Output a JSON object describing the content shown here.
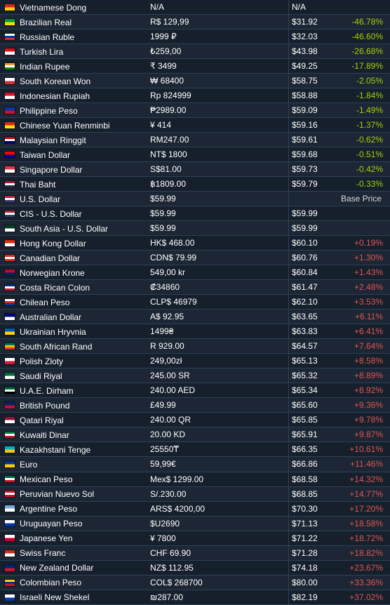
{
  "colors": {
    "background": "#1b2838",
    "cheaper": "#a4d007",
    "pricier": "#e0554f"
  },
  "rows": [
    {
      "name": "Vietnamese Dong",
      "flag": [
        "#da251d",
        "#ffcd00"
      ],
      "local": "N/A",
      "usd": "N/A",
      "diff": "",
      "kind": "none"
    },
    {
      "name": "Brazilian Real",
      "flag": [
        "#009c3b",
        "#ffdf00"
      ],
      "local": "R$ 129,99",
      "usd": "$31.92",
      "diff": "-46.78%",
      "kind": "neg"
    },
    {
      "name": "Russian Ruble",
      "flag": [
        "#ffffff",
        "#0039a6",
        "#d52b1e"
      ],
      "local": "1999 ₽",
      "usd": "$32.03",
      "diff": "-46.60%",
      "kind": "neg"
    },
    {
      "name": "Turkish Lira",
      "flag": [
        "#e30a17",
        "#ffffff"
      ],
      "local": "₺259,00",
      "usd": "$43.98",
      "diff": "-26.68%",
      "kind": "neg"
    },
    {
      "name": "Indian Rupee",
      "flag": [
        "#ff9933",
        "#ffffff",
        "#138808"
      ],
      "local": "₹ 3499",
      "usd": "$49.25",
      "diff": "-17.89%",
      "kind": "neg"
    },
    {
      "name": "South Korean Won",
      "flag": [
        "#ffffff",
        "#cd2e3a"
      ],
      "local": "₩ 68400",
      "usd": "$58.75",
      "diff": "-2.05%",
      "kind": "neg"
    },
    {
      "name": "Indonesian Rupiah",
      "flag": [
        "#ce1126",
        "#ffffff"
      ],
      "local": "Rp 824999",
      "usd": "$58.88",
      "diff": "-1.84%",
      "kind": "neg"
    },
    {
      "name": "Philippine Peso",
      "flag": [
        "#0038a8",
        "#ce1126"
      ],
      "local": "₱2989.00",
      "usd": "$59.09",
      "diff": "-1.49%",
      "kind": "neg"
    },
    {
      "name": "Chinese Yuan Renminbi",
      "flag": [
        "#de2910",
        "#ffde00"
      ],
      "local": "¥ 414",
      "usd": "$59.16",
      "diff": "-1.37%",
      "kind": "neg"
    },
    {
      "name": "Malaysian Ringgit",
      "flag": [
        "#cc0001",
        "#ffffff",
        "#010066"
      ],
      "local": "RM247.00",
      "usd": "$59.61",
      "diff": "-0.62%",
      "kind": "neg"
    },
    {
      "name": "Taiwan Dollar",
      "flag": [
        "#fe0000",
        "#000095"
      ],
      "local": "NT$ 1800",
      "usd": "$59.68",
      "diff": "-0.51%",
      "kind": "neg"
    },
    {
      "name": "Singapore Dollar",
      "flag": [
        "#ef3340",
        "#ffffff"
      ],
      "local": "S$81.00",
      "usd": "$59.73",
      "diff": "-0.42%",
      "kind": "neg"
    },
    {
      "name": "Thai Baht",
      "flag": [
        "#a51931",
        "#f4f5f8",
        "#2d2a4a"
      ],
      "local": "฿1809.00",
      "usd": "$59.79",
      "diff": "-0.33%",
      "kind": "neg"
    },
    {
      "name": "U.S. Dollar",
      "flag": [
        "#b22234",
        "#ffffff",
        "#3c3b6e"
      ],
      "local": "$59.99",
      "usd": "",
      "diff": "Base Price",
      "kind": "base"
    },
    {
      "name": "CIS - U.S. Dollar",
      "flag": [
        "#b22234",
        "#ffffff",
        "#3c3b6e"
      ],
      "local": "$59.99",
      "usd": "$59.99",
      "diff": "",
      "kind": "none"
    },
    {
      "name": "South Asia - U.S. Dollar",
      "flag": [
        "#01411c",
        "#ffffff"
      ],
      "local": "$59.99",
      "usd": "$59.99",
      "diff": "",
      "kind": "none"
    },
    {
      "name": "Hong Kong Dollar",
      "flag": [
        "#de2910",
        "#ffffff"
      ],
      "local": "HK$ 468.00",
      "usd": "$60.10",
      "diff": "+0.19%",
      "kind": "pos"
    },
    {
      "name": "Canadian Dollar",
      "flag": [
        "#d52b1e",
        "#ffffff",
        "#d52b1e"
      ],
      "local": "CDN$ 79.99",
      "usd": "$60.76",
      "diff": "+1.30%",
      "kind": "pos"
    },
    {
      "name": "Norwegian Krone",
      "flag": [
        "#ba0c2f",
        "#00205b"
      ],
      "local": "549,00 kr",
      "usd": "$60.84",
      "diff": "+1.43%",
      "kind": "pos"
    },
    {
      "name": "Costa Rican Colon",
      "flag": [
        "#002b7f",
        "#ffffff",
        "#ce1126"
      ],
      "local": "₡34860",
      "usd": "$61.47",
      "diff": "+2.48%",
      "kind": "pos"
    },
    {
      "name": "Chilean Peso",
      "flag": [
        "#ffffff",
        "#d52b1e",
        "#0039a6"
      ],
      "local": "CLP$ 46979",
      "usd": "$62.10",
      "diff": "+3.53%",
      "kind": "pos"
    },
    {
      "name": "Australian Dollar",
      "flag": [
        "#00008b",
        "#ffffff"
      ],
      "local": "A$ 92.95",
      "usd": "$63.65",
      "diff": "+6.11%",
      "kind": "pos"
    },
    {
      "name": "Ukrainian Hryvnia",
      "flag": [
        "#0057b7",
        "#ffd700"
      ],
      "local": "1499₴",
      "usd": "$63.83",
      "diff": "+6.41%",
      "kind": "pos"
    },
    {
      "name": "South African Rand",
      "flag": [
        "#007a4d",
        "#ffb612",
        "#de3831"
      ],
      "local": "R 929.00",
      "usd": "$64.57",
      "diff": "+7.64%",
      "kind": "pos"
    },
    {
      "name": "Polish Zloty",
      "flag": [
        "#ffffff",
        "#dc143c"
      ],
      "local": "249,00zł",
      "usd": "$65.13",
      "diff": "+8.58%",
      "kind": "pos"
    },
    {
      "name": "Saudi Riyal",
      "flag": [
        "#006c35",
        "#ffffff"
      ],
      "local": "245.00 SR",
      "usd": "$65.32",
      "diff": "+8.89%",
      "kind": "pos"
    },
    {
      "name": "U.A.E. Dirham",
      "flag": [
        "#00732f",
        "#ffffff",
        "#000000"
      ],
      "local": "240.00 AED",
      "usd": "$65.34",
      "diff": "+8.92%",
      "kind": "pos"
    },
    {
      "name": "British Pound",
      "flag": [
        "#012169",
        "#c8102e"
      ],
      "local": "£49.99",
      "usd": "$65.60",
      "diff": "+9.36%",
      "kind": "pos"
    },
    {
      "name": "Qatari Riyal",
      "flag": [
        "#8a1538",
        "#ffffff"
      ],
      "local": "240.00 QR",
      "usd": "$65.85",
      "diff": "+9.78%",
      "kind": "pos"
    },
    {
      "name": "Kuwaiti Dinar",
      "flag": [
        "#007a3d",
        "#ffffff",
        "#ce1126"
      ],
      "local": "20.00 KD",
      "usd": "$65.91",
      "diff": "+9.87%",
      "kind": "pos"
    },
    {
      "name": "Kazakhstani Tenge",
      "flag": [
        "#00afca",
        "#fec50c"
      ],
      "local": "25550₸",
      "usd": "$66.35",
      "diff": "+10.61%",
      "kind": "pos"
    },
    {
      "name": "Euro",
      "flag": [
        "#003399",
        "#ffcc00"
      ],
      "local": "59,99€",
      "usd": "$66.86",
      "diff": "+11.46%",
      "kind": "pos"
    },
    {
      "name": "Mexican Peso",
      "flag": [
        "#006847",
        "#ffffff",
        "#ce1126"
      ],
      "local": "Mex$ 1299.00",
      "usd": "$68.58",
      "diff": "+14.32%",
      "kind": "pos"
    },
    {
      "name": "Peruvian Nuevo Sol",
      "flag": [
        "#d91023",
        "#ffffff",
        "#d91023"
      ],
      "local": "S/.230.00",
      "usd": "$68.85",
      "diff": "+14.77%",
      "kind": "pos"
    },
    {
      "name": "Argentine Peso",
      "flag": [
        "#74acdf",
        "#ffffff"
      ],
      "local": "ARS$ 4200,00",
      "usd": "$70.30",
      "diff": "+17.20%",
      "kind": "pos"
    },
    {
      "name": "Uruguayan Peso",
      "flag": [
        "#ffffff",
        "#0038a8"
      ],
      "local": "$U2690",
      "usd": "$71.13",
      "diff": "+18.58%",
      "kind": "pos"
    },
    {
      "name": "Japanese Yen",
      "flag": [
        "#ffffff",
        "#bc002d"
      ],
      "local": "¥ 7800",
      "usd": "$71.22",
      "diff": "+18.72%",
      "kind": "pos"
    },
    {
      "name": "Swiss Franc",
      "flag": [
        "#d52b1e",
        "#ffffff"
      ],
      "local": "CHF 69.90",
      "usd": "$71.28",
      "diff": "+18.82%",
      "kind": "pos"
    },
    {
      "name": "New Zealand Dollar",
      "flag": [
        "#00247d",
        "#cc142b"
      ],
      "local": "NZ$ 112.95",
      "usd": "$74.18",
      "diff": "+23.67%",
      "kind": "pos"
    },
    {
      "name": "Colombian Peso",
      "flag": [
        "#fcd116",
        "#003893",
        "#ce1126"
      ],
      "local": "COL$ 268700",
      "usd": "$80.00",
      "diff": "+33.36%",
      "kind": "pos"
    },
    {
      "name": "Israeli New Shekel",
      "flag": [
        "#ffffff",
        "#0038b8"
      ],
      "local": "₪287.00",
      "usd": "$82.19",
      "diff": "+37.02%",
      "kind": "pos"
    }
  ]
}
